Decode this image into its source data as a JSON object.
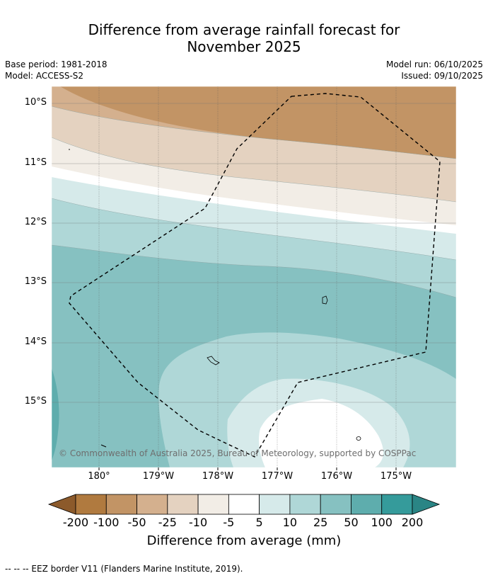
{
  "title_line1": "Difference from average rainfall forecast for",
  "title_line2": "November 2025",
  "base_period": "Base period: 1981-2018",
  "model": "Model: ACCESS-S2",
  "model_run": "Model run: 06/10/2025",
  "issued": "Issued: 09/10/2025",
  "lat_labels": [
    "10°S",
    "11°S",
    "12°S",
    "13°S",
    "14°S",
    "15°S"
  ],
  "lon_labels": [
    "180°",
    "179°W",
    "178°W",
    "177°W",
    "176°W",
    "175°W"
  ],
  "copyright": "© Commonwealth of Australia 2025, Bureau of Meteorology, supported by COSPPac",
  "colorbar": {
    "ticks": [
      "-200",
      "-100",
      "-50",
      "-25",
      "-10",
      "-5",
      "5",
      "10",
      "25",
      "50",
      "100",
      "200"
    ],
    "colors": [
      "#8c5a2b",
      "#b07a3f",
      "#c29465",
      "#d4b08e",
      "#e4d2c0",
      "#f2ede6",
      "#ffffff",
      "#d6eaea",
      "#afd7d7",
      "#86c1c1",
      "#5eadad",
      "#359b9b",
      "#2a8585"
    ],
    "label": "Difference from average (mm)"
  },
  "footnote": "--  --  -- EEZ border V11 (Flanders Marine Institute, 2019)."
}
